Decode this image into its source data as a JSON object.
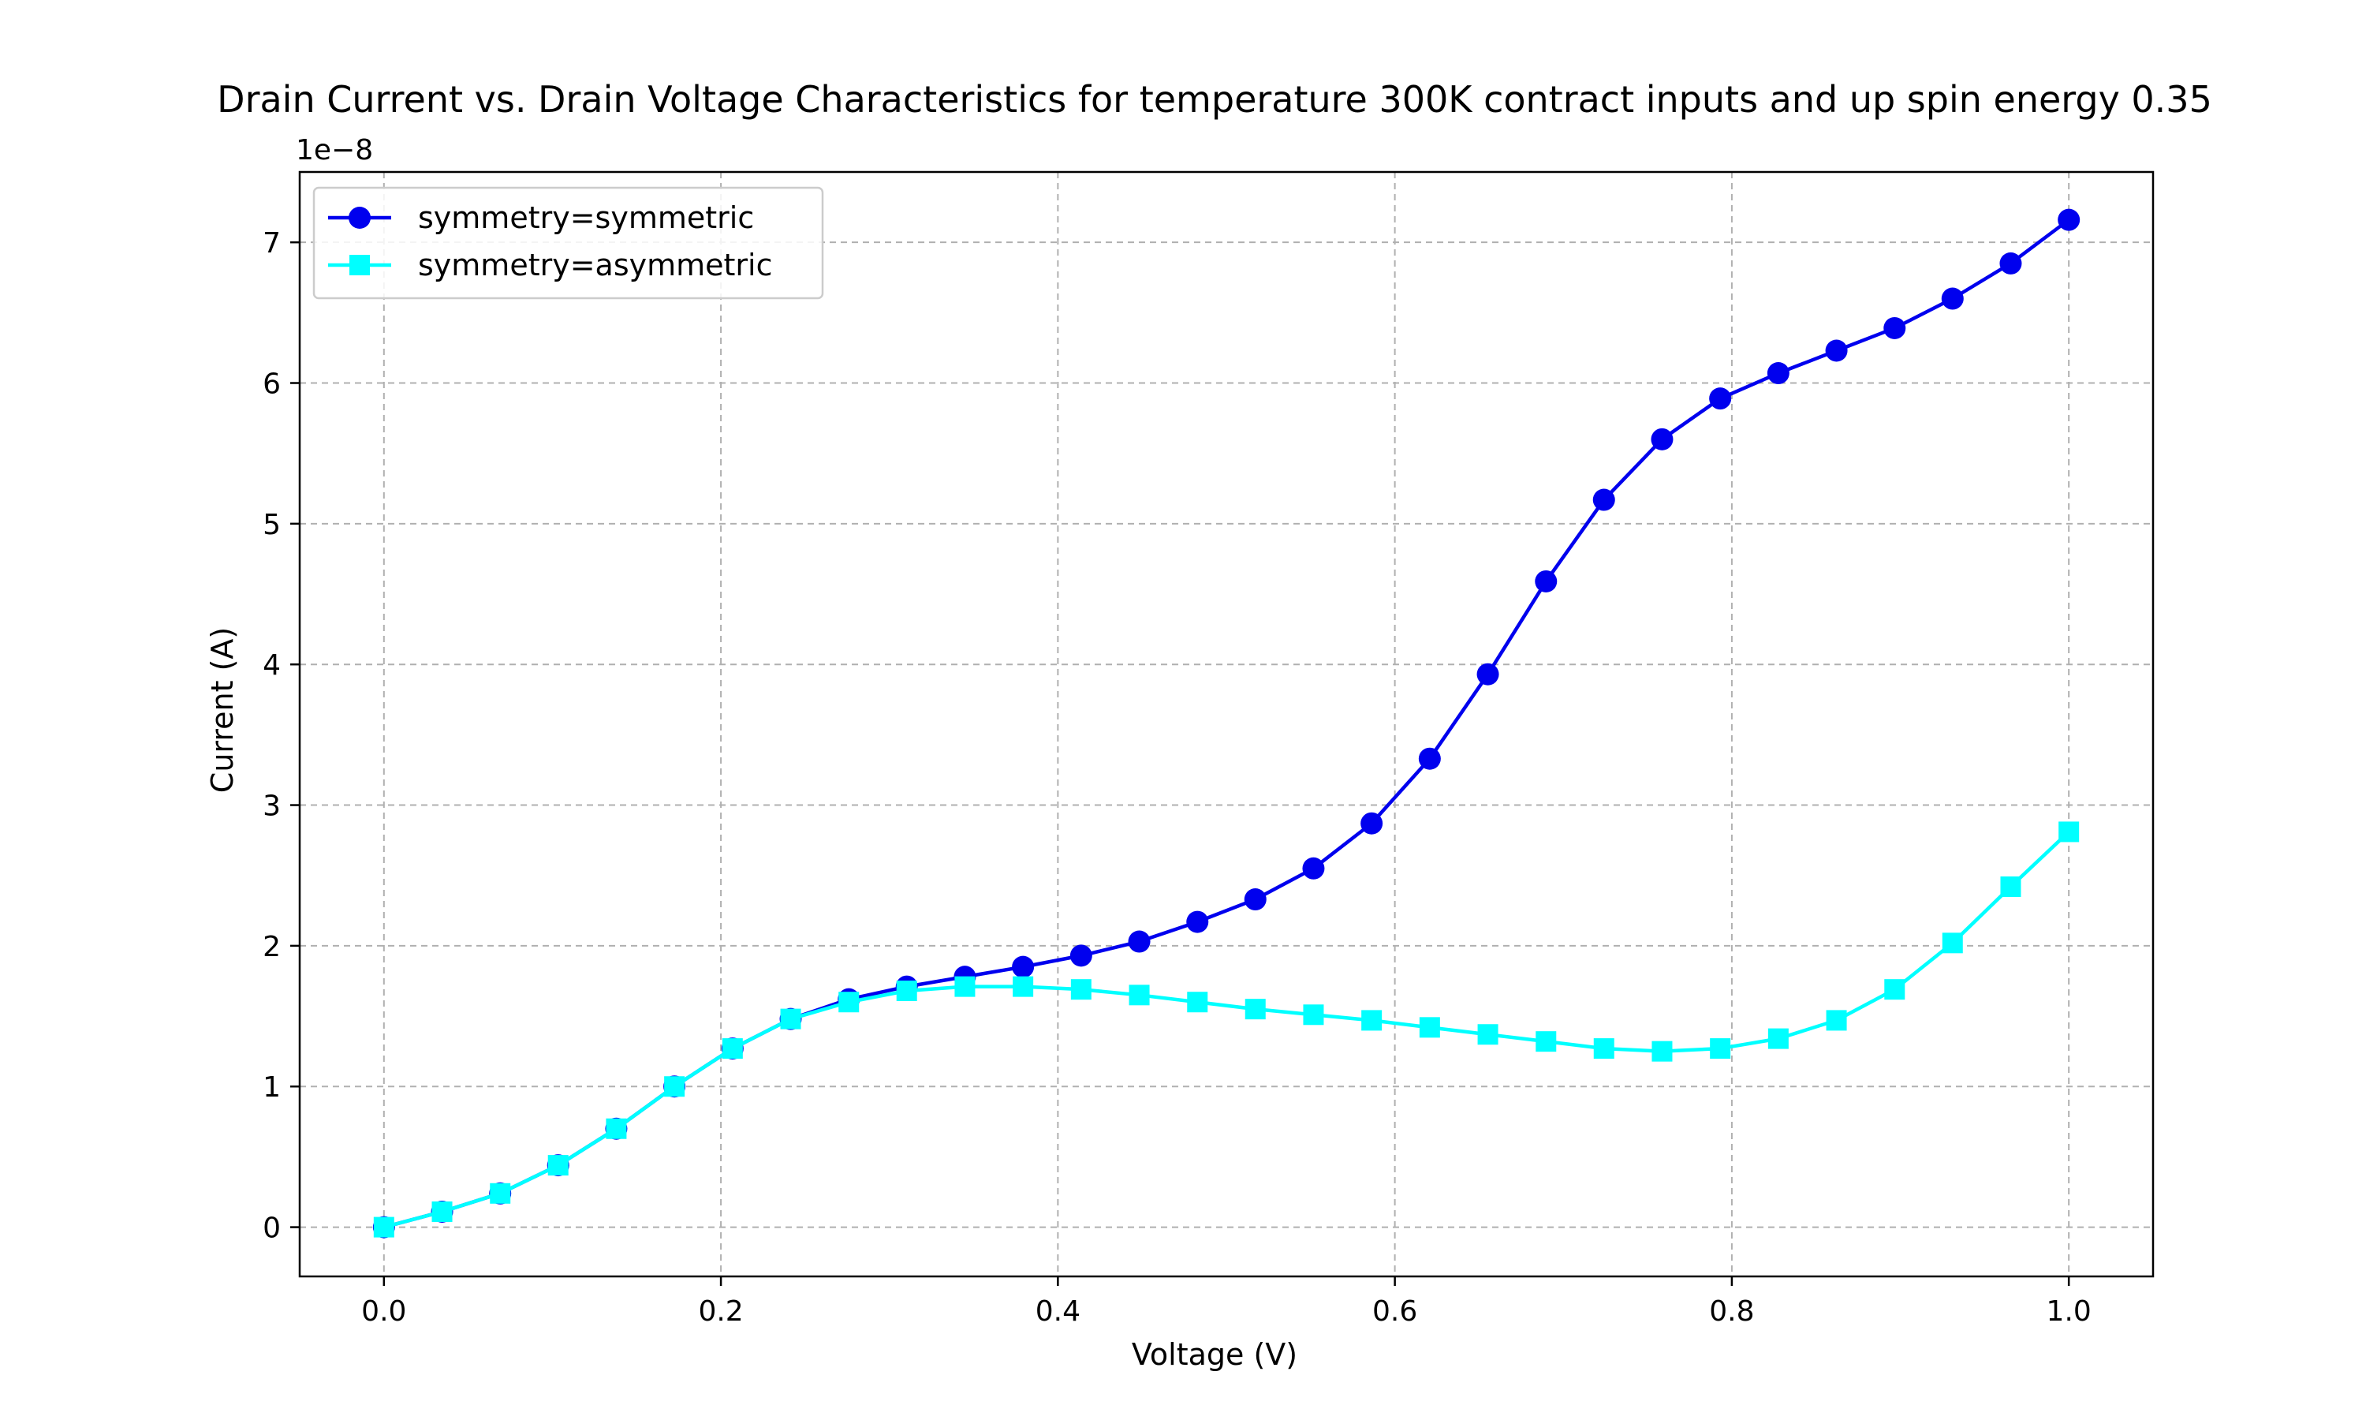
{
  "chart_data": {
    "type": "line",
    "title": "Drain Current vs. Drain Voltage Characteristics for temperature 300K contract inputs and up spin energy 0.35",
    "xlabel": "Voltage (V)",
    "ylabel": "Current (A)",
    "offset_label": "1e−8",
    "x_ticks": [
      "0.0",
      "0.2",
      "0.4",
      "0.6",
      "0.8",
      "1.0"
    ],
    "y_ticks": [
      "0",
      "1",
      "2",
      "3",
      "4",
      "5",
      "6",
      "7"
    ],
    "xlim": [
      -0.05,
      1.05
    ],
    "ylim": [
      -0.35,
      7.5
    ],
    "grid": true,
    "legend_position": "top-left",
    "x": [
      0.0,
      0.0345,
      0.069,
      0.1034,
      0.1379,
      0.1724,
      0.2069,
      0.2414,
      0.2759,
      0.3103,
      0.3448,
      0.3793,
      0.4138,
      0.4483,
      0.4828,
      0.5172,
      0.5517,
      0.5862,
      0.6207,
      0.6552,
      0.6897,
      0.7241,
      0.7586,
      0.7931,
      0.8276,
      0.8621,
      0.8966,
      0.931,
      0.9655,
      1.0
    ],
    "series": [
      {
        "name": "symmetry=symmetric",
        "color": "#0000ee",
        "marker": "circle",
        "values": [
          0.0,
          0.11,
          0.24,
          0.44,
          0.7,
          1.0,
          1.27,
          1.48,
          1.62,
          1.71,
          1.78,
          1.85,
          1.93,
          2.03,
          2.17,
          2.33,
          2.55,
          2.87,
          3.33,
          3.93,
          4.59,
          5.17,
          5.6,
          5.89,
          6.07,
          6.23,
          6.39,
          6.6,
          6.85,
          7.16
        ]
      },
      {
        "name": "symmetry=asymmetric",
        "color": "#00ffff",
        "marker": "square",
        "values": [
          0.0,
          0.11,
          0.24,
          0.44,
          0.7,
          1.0,
          1.27,
          1.48,
          1.6,
          1.68,
          1.71,
          1.71,
          1.69,
          1.65,
          1.6,
          1.55,
          1.51,
          1.47,
          1.42,
          1.37,
          1.32,
          1.27,
          1.25,
          1.27,
          1.34,
          1.47,
          1.69,
          2.02,
          2.42,
          2.81
        ]
      }
    ]
  }
}
